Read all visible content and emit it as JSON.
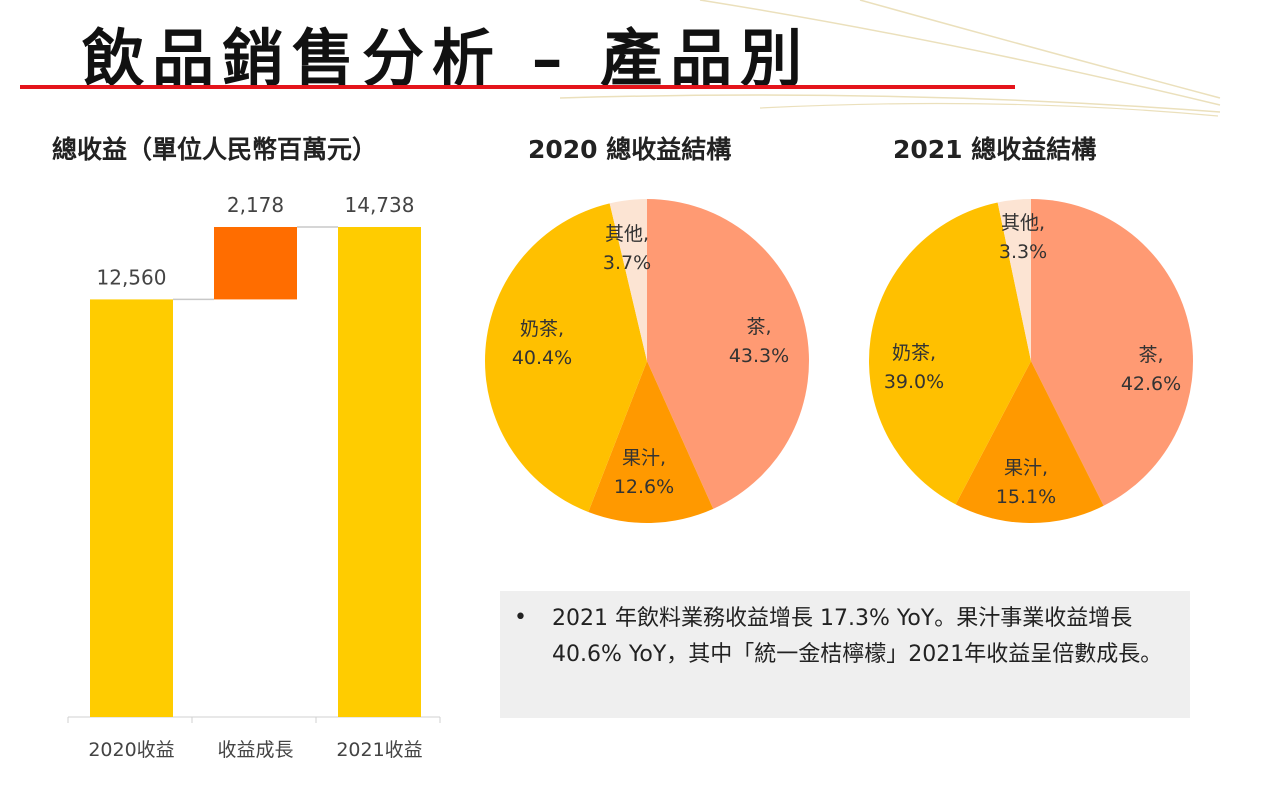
{
  "page": {
    "title": "飲品銷售分析 – 產品別",
    "accent_color": "#e4141b",
    "decoration_color": "#e8dcb0"
  },
  "chart_data": [
    {
      "type": "bar",
      "subtype": "waterfall",
      "title": "總收益（單位人民幣百萬元）",
      "categories": [
        "2020收益",
        "收益成長",
        "2021收益"
      ],
      "values": [
        12560,
        2178,
        14738
      ],
      "value_labels": [
        "12,560",
        "2,178",
        "14,738"
      ],
      "colors": [
        "#ffcc00",
        "#ff6d00",
        "#ffcc00"
      ],
      "connector_color": "#c8c8c8",
      "ylim": [
        0,
        14738
      ],
      "xlabel": "",
      "ylabel": "",
      "grid": false,
      "legend": "none"
    },
    {
      "type": "pie",
      "title": "2020 總收益結構",
      "slices": [
        {
          "label": "茶,",
          "value": 43.3,
          "value_label": "43.3%",
          "color": "#ff9a73"
        },
        {
          "label": "果汁,",
          "value": 12.6,
          "value_label": "12.6%",
          "color": "#ff9900"
        },
        {
          "label": "奶茶,",
          "value": 40.4,
          "value_label": "40.4%",
          "color": "#ffc000"
        },
        {
          "label": "其他,",
          "value": 3.7,
          "value_label": "3.7%",
          "color": "#fce4d3"
        }
      ]
    },
    {
      "type": "pie",
      "title": "2021 總收益結構",
      "slices": [
        {
          "label": "茶,",
          "value": 42.6,
          "value_label": "42.6%",
          "color": "#ff9a73"
        },
        {
          "label": "果汁,",
          "value": 15.1,
          "value_label": "15.1%",
          "color": "#ff9900"
        },
        {
          "label": "奶茶,",
          "value": 39.0,
          "value_label": "39.0%",
          "color": "#ffc000"
        },
        {
          "label": "其他,",
          "value": 3.3,
          "value_label": "3.3%",
          "color": "#fce4d3"
        }
      ]
    }
  ],
  "note": {
    "bullet": "•",
    "text": "2021 年飲料業務收益增長 17.3% YoY。果汁事業收益增長40.6% YoY，其中「統一金桔檸檬」2021年收益呈倍數成長。"
  }
}
